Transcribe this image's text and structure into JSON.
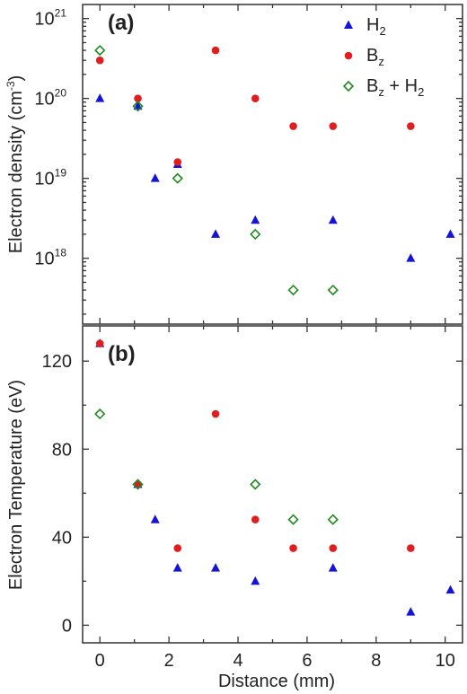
{
  "chart_data": [
    {
      "type": "scatter",
      "panel_label": "(a)",
      "xlabel": "",
      "ylabel": "Electron density",
      "ylabel_unit_base": "(cm",
      "ylabel_unit_exp": "-3",
      "ylabel_unit_close": ")",
      "yscale": "log",
      "xlim": [
        -0.5,
        10.5
      ],
      "ylim": [
        1.5e+17,
        1.5e+21
      ],
      "yticks": [
        {
          "value": 1e+18,
          "base": "10",
          "exp": "18"
        },
        {
          "value": 1e+19,
          "base": "10",
          "exp": "19"
        },
        {
          "value": 1e+20,
          "base": "10",
          "exp": "20"
        },
        {
          "value": 1e+21,
          "base": "10",
          "exp": "21"
        }
      ],
      "legend_position": "top-right",
      "series": [
        {
          "name": "H2",
          "legend_base": "H",
          "legend_sub": "2",
          "legend_suffix": "",
          "marker": "triangle",
          "color": "#1414d8",
          "points": [
            {
              "x": 0,
              "y": 1e+20
            },
            {
              "x": 1.1,
              "y": 8e+19
            },
            {
              "x": 1.6,
              "y": 1e+19
            },
            {
              "x": 2.25,
              "y": 1.5e+19
            },
            {
              "x": 3.35,
              "y": 2e+18
            },
            {
              "x": 4.5,
              "y": 3e+18
            },
            {
              "x": 6.75,
              "y": 3e+18
            },
            {
              "x": 9.0,
              "y": 1e+18
            },
            {
              "x": 10.15,
              "y": 2e+18
            }
          ]
        },
        {
          "name": "Bz",
          "legend_base": "B",
          "legend_sub": "z",
          "legend_suffix": "",
          "marker": "circle",
          "color": "#e01e1e",
          "points": [
            {
              "x": 0,
              "y": 3e+20
            },
            {
              "x": 1.1,
              "y": 1e+20
            },
            {
              "x": 2.25,
              "y": 1.6e+19
            },
            {
              "x": 3.35,
              "y": 4e+20
            },
            {
              "x": 4.5,
              "y": 1e+20
            },
            {
              "x": 5.6,
              "y": 4.5e+19
            },
            {
              "x": 6.75,
              "y": 4.5e+19
            },
            {
              "x": 9.0,
              "y": 4.5e+19
            }
          ]
        },
        {
          "name": "Bz + H2",
          "legend_base": "B",
          "legend_sub": "z",
          "legend_suffix": " + H",
          "legend_sub2": "2",
          "marker": "diamond-open",
          "color": "#1f8a1f",
          "points": [
            {
              "x": 0,
              "y": 4e+20
            },
            {
              "x": 1.1,
              "y": 8e+19
            },
            {
              "x": 2.25,
              "y": 1e+19
            },
            {
              "x": 4.5,
              "y": 2e+18
            },
            {
              "x": 5.6,
              "y": 4e+17
            },
            {
              "x": 6.75,
              "y": 4e+17
            }
          ]
        }
      ]
    },
    {
      "type": "scatter",
      "panel_label": "(b)",
      "xlabel": "Distance (mm)",
      "ylabel": "Electron Temperature (eV)",
      "yscale": "linear",
      "xlim": [
        -0.5,
        10.5
      ],
      "ylim": [
        -8,
        136
      ],
      "xticks": [
        0,
        2,
        4,
        6,
        8,
        10
      ],
      "yticks": [
        0,
        40,
        80,
        120
      ],
      "series": [
        {
          "name": "H2",
          "marker": "triangle",
          "color": "#1414d8",
          "points": [
            {
              "x": 0,
              "y": 128
            },
            {
              "x": 1.1,
              "y": 64
            },
            {
              "x": 1.6,
              "y": 48
            },
            {
              "x": 2.25,
              "y": 26
            },
            {
              "x": 3.35,
              "y": 26
            },
            {
              "x": 4.5,
              "y": 20
            },
            {
              "x": 6.75,
              "y": 26
            },
            {
              "x": 9.0,
              "y": 6
            },
            {
              "x": 10.15,
              "y": 16
            }
          ]
        },
        {
          "name": "Bz",
          "marker": "circle",
          "color": "#e01e1e",
          "points": [
            {
              "x": 0,
              "y": 128
            },
            {
              "x": 1.1,
              "y": 64
            },
            {
              "x": 2.25,
              "y": 35
            },
            {
              "x": 3.35,
              "y": 96
            },
            {
              "x": 4.5,
              "y": 48
            },
            {
              "x": 5.6,
              "y": 35
            },
            {
              "x": 6.75,
              "y": 35
            },
            {
              "x": 9.0,
              "y": 35
            }
          ]
        },
        {
          "name": "Bz + H2",
          "marker": "diamond-open",
          "color": "#1f8a1f",
          "points": [
            {
              "x": 0,
              "y": 96
            },
            {
              "x": 1.1,
              "y": 64
            },
            {
              "x": 4.5,
              "y": 64
            },
            {
              "x": 5.6,
              "y": 48
            },
            {
              "x": 6.75,
              "y": 48
            }
          ]
        }
      ]
    }
  ]
}
